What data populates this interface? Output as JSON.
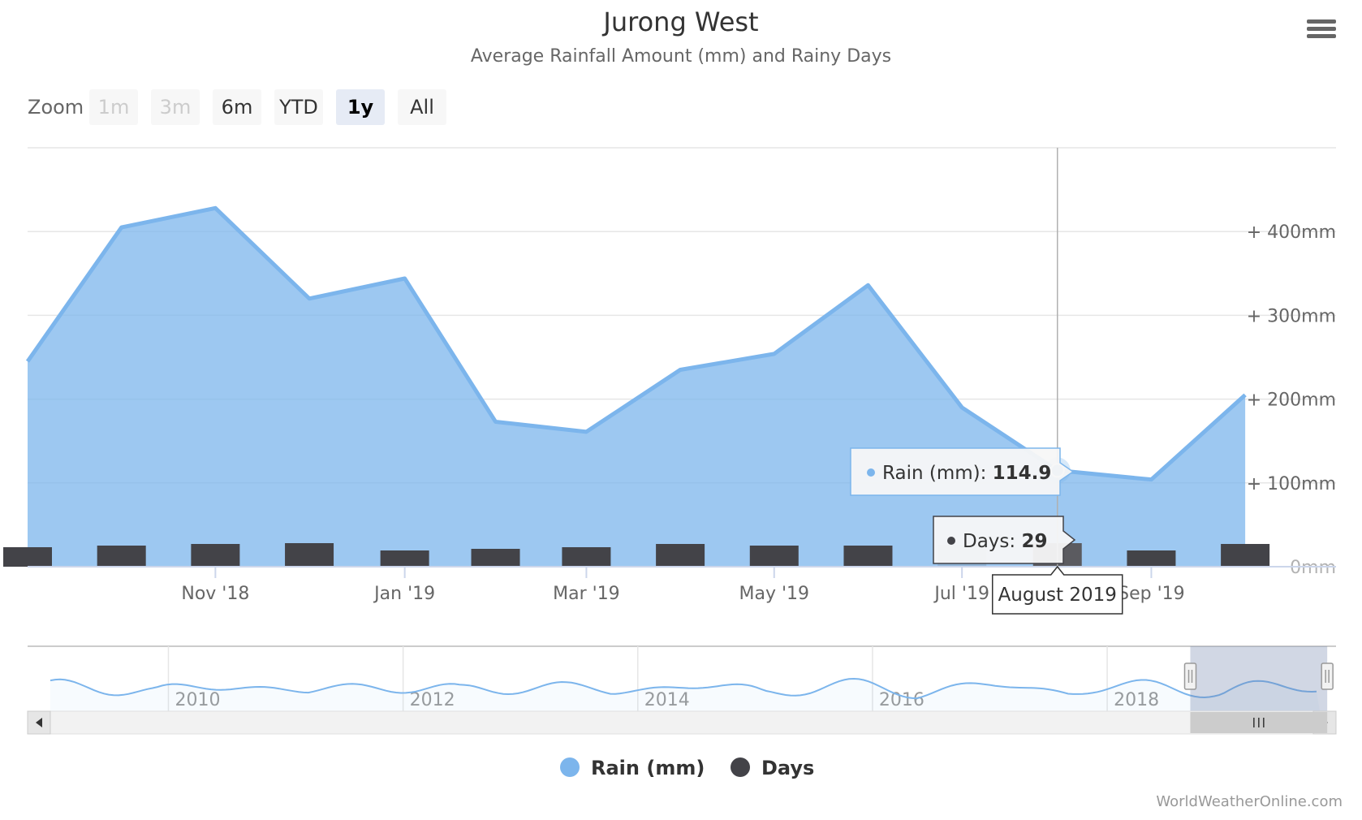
{
  "title": "Jurong West",
  "subtitle": "Average Rainfall Amount (mm) and Rainy Days",
  "menu": {
    "icon": "hamburger-menu-icon"
  },
  "zoom": {
    "label": "Zoom",
    "buttons": [
      {
        "label": "1m",
        "state": "disabled"
      },
      {
        "label": "3m",
        "state": "disabled"
      },
      {
        "label": "6m",
        "state": "normal"
      },
      {
        "label": "YTD",
        "state": "normal"
      },
      {
        "label": "1y",
        "state": "active"
      },
      {
        "label": "All",
        "state": "normal"
      }
    ]
  },
  "chart_data": {
    "type": "area",
    "title": "Jurong West",
    "subtitle": "Average Rainfall Amount (mm) and Rainy Days",
    "y_axis": {
      "ticks": [
        "0mm",
        "+ 100mm",
        "+ 200mm",
        "+ 300mm",
        "+ 400mm"
      ],
      "tick_values": [
        0,
        100,
        200,
        300,
        400
      ],
      "range": [
        0,
        500
      ],
      "position": "right"
    },
    "x_axis": {
      "tick_labels": [
        "Nov '18",
        "Jan '19",
        "Mar '19",
        "May '19",
        "Jul '19",
        "Sep '19"
      ],
      "tick_months": [
        "2018-11",
        "2019-01",
        "2019-03",
        "2019-05",
        "2019-07",
        "2019-09"
      ],
      "range": [
        "2018-09-16",
        "2019-11-15"
      ]
    },
    "months": [
      "2018-09",
      "2018-10",
      "2018-11",
      "2018-12",
      "2019-01",
      "2019-02",
      "2019-03",
      "2019-04",
      "2019-05",
      "2019-06",
      "2019-07",
      "2019-08",
      "2019-09",
      "2019-10"
    ],
    "series": [
      {
        "name": "Rain (mm)",
        "type": "area",
        "color": "#7cb5ec",
        "values": [
          245,
          405,
          428,
          320,
          344,
          173,
          161,
          235,
          254,
          336,
          190,
          114.9,
          104,
          205
        ]
      },
      {
        "name": "Days",
        "type": "column",
        "color": "#434348",
        "values": [
          24,
          26,
          28,
          29,
          20,
          22,
          24,
          28,
          26,
          26,
          27,
          29,
          20,
          28
        ]
      }
    ],
    "grid": true,
    "legend": "bottom-center",
    "tooltip": {
      "header": "August 2019",
      "rain_label": "Rain (mm): ",
      "rain_value": "114.9",
      "days_label": "Days: ",
      "days_value": "29"
    }
  },
  "navigator": {
    "year_labels": [
      "2010",
      "2012",
      "2014",
      "2016",
      "2018"
    ],
    "year_values": [
      2010,
      2012,
      2014,
      2016,
      2018
    ],
    "range": [
      2008.8,
      2019.95
    ],
    "selected_range": [
      "2018-09",
      "2019-11"
    ],
    "scroll_left_icon": "arrow-left-icon",
    "scroll_right_icon": "arrow-right-icon",
    "grip_icon": "scrollbar-grip-icon"
  },
  "legend": {
    "items": [
      {
        "label": "Rain (mm)",
        "color": "#7cb5ec"
      },
      {
        "label": "Days",
        "color": "#434348"
      }
    ]
  },
  "credits": "WorldWeatherOnline.com"
}
